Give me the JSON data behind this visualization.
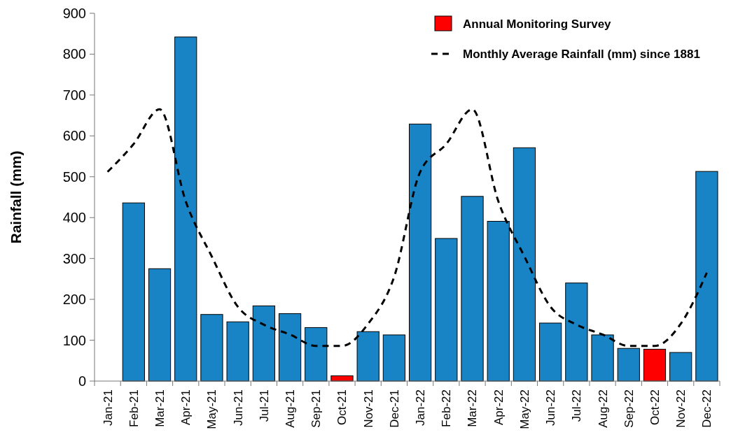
{
  "chart_data": {
    "type": "bar",
    "ylabel": "Rainfall (mm)",
    "categories": [
      "Jan-21",
      "Feb-21",
      "Mar-21",
      "Apr-21",
      "May-21",
      "Jun-21",
      "Jul-21",
      "Aug-21",
      "Sep-21",
      "Oct-21",
      "Nov-21",
      "Dec-21",
      "Jan-22",
      "Feb-22",
      "Mar-22",
      "Apr-22",
      "May-22",
      "Jun-22",
      "Jul-22",
      "Aug-22",
      "Sep-22",
      "Oct-22",
      "Nov-22",
      "Dec-22"
    ],
    "series": [
      {
        "color": "#1984c5",
        "values": [
          null,
          436,
          275,
          842,
          163,
          145,
          184,
          165,
          131,
          null,
          121,
          113,
          629,
          349,
          452,
          391,
          571,
          142,
          240,
          113,
          80,
          null,
          70,
          513
        ]
      },
      {
        "name": "Annual Monitoring Survey",
        "color": "#ff0000",
        "values": [
          null,
          null,
          null,
          null,
          null,
          null,
          null,
          null,
          null,
          13,
          null,
          null,
          null,
          null,
          null,
          null,
          null,
          null,
          null,
          null,
          null,
          78,
          null,
          null
        ]
      },
      {
        "type": "line",
        "name": "Monthly Average Rainfall (mm) since 1881",
        "color": "#000000",
        "line_style": "dashed",
        "values": [
          512,
          580,
          665,
          440,
          305,
          182,
          138,
          114,
          86,
          86,
          140,
          255,
          512,
          580,
          665,
          440,
          305,
          182,
          138,
          114,
          86,
          86,
          140,
          265
        ]
      }
    ],
    "ylim": [
      0,
      900
    ],
    "yticks": [
      0,
      100,
      200,
      300,
      400,
      500,
      600,
      700,
      800,
      900
    ],
    "grid": false,
    "legend": "top right"
  }
}
